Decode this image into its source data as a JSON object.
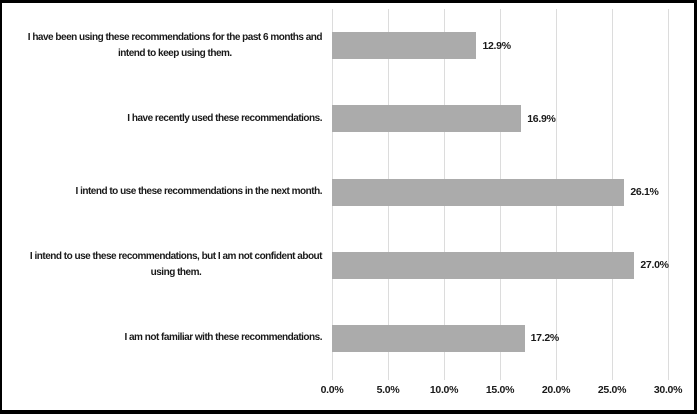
{
  "figure": {
    "background": "#ffffff",
    "border_color": "#000000"
  },
  "chart_data": {
    "type": "bar",
    "orientation": "horizontal",
    "title": "",
    "xlabel": "",
    "ylabel": "",
    "xlim": [
      0,
      30
    ],
    "grid": true,
    "legend": false,
    "bar_color": "#ababab",
    "gridline_color": "#dcdcdc",
    "text_color": "#1a1a1a",
    "categories": [
      "I have been using these recommendations for the past 6 months and\nintend to keep using them.",
      "I have recently used these recommendations.",
      "I intend to use these recommendations in the next month.",
      "I intend to use these recommendations, but I am not confident about\nusing them.",
      "I am not familiar with these recommendations."
    ],
    "values": [
      12.9,
      16.9,
      26.1,
      27.0,
      17.2
    ],
    "value_labels": [
      "12.9%",
      "16.9%",
      "26.1%",
      "27.0%",
      "17.2%"
    ],
    "x_tick_values": [
      0,
      5,
      10,
      15,
      20,
      25,
      30
    ],
    "x_tick_labels": [
      "0.0%",
      "5.0%",
      "10.0%",
      "15.0%",
      "20.0%",
      "25.0%",
      "30.0%"
    ]
  }
}
